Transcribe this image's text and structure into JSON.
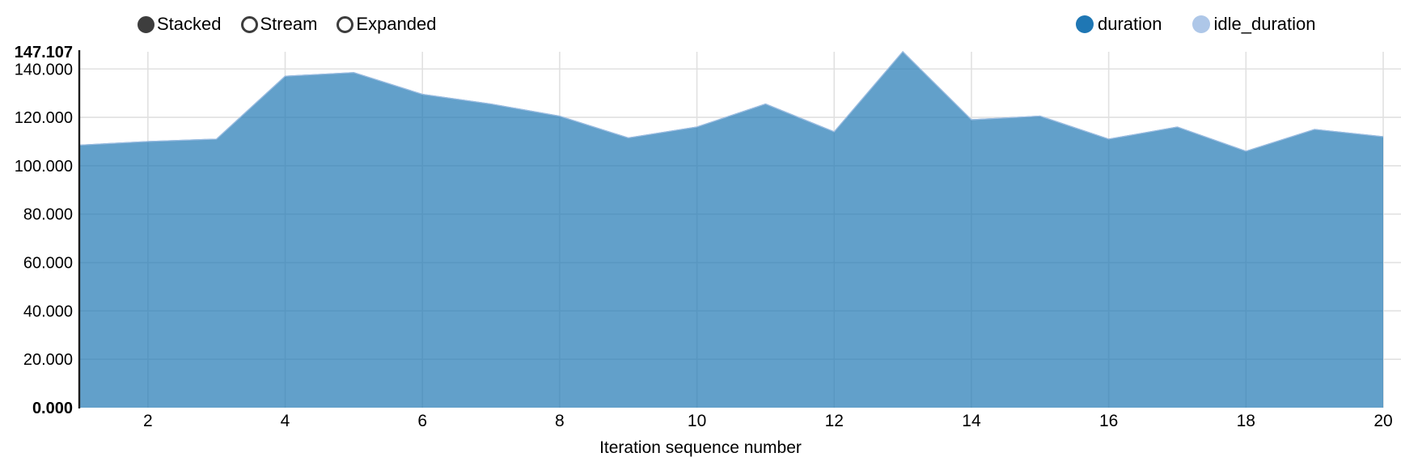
{
  "controls": {
    "options": [
      {
        "label": "Stacked",
        "selected": true
      },
      {
        "label": "Stream",
        "selected": false
      },
      {
        "label": "Expanded",
        "selected": false
      }
    ]
  },
  "legend": {
    "items": [
      {
        "label": "duration",
        "color": "#1f77b4"
      },
      {
        "label": "idle_duration",
        "color": "#aec7e8"
      }
    ]
  },
  "chart_data": {
    "type": "area",
    "mode": "Stacked",
    "title": "",
    "xlabel": "Iteration sequence number",
    "ylabel": "",
    "x": [
      1,
      2,
      3,
      4,
      5,
      6,
      7,
      8,
      9,
      10,
      11,
      12,
      13,
      14,
      15,
      16,
      17,
      18,
      19,
      20
    ],
    "series": [
      {
        "name": "duration",
        "color": "#1f77b4",
        "values": [
          108.5,
          110,
          111,
          137,
          138.5,
          129.5,
          125.5,
          120.5,
          111.5,
          116,
          125.5,
          114,
          147.107,
          119,
          120.5,
          111,
          116,
          106,
          115,
          112
        ]
      },
      {
        "name": "idle_duration",
        "color": "#aec7e8",
        "values": [
          0,
          0,
          0,
          0,
          0,
          0,
          0,
          0,
          0,
          0,
          0,
          0,
          0,
          0,
          0,
          0,
          0,
          0,
          0,
          0
        ]
      }
    ],
    "xlim": [
      1,
      20
    ],
    "ylim": [
      0,
      147.107
    ],
    "x_ticks": [
      2,
      4,
      6,
      8,
      10,
      12,
      14,
      16,
      18,
      20
    ],
    "y_ticks": [
      {
        "label": "0.000",
        "value": 0,
        "bold": true
      },
      {
        "label": "20.000",
        "value": 20,
        "bold": false
      },
      {
        "label": "40.000",
        "value": 40,
        "bold": false
      },
      {
        "label": "60.000",
        "value": 60,
        "bold": false
      },
      {
        "label": "80.000",
        "value": 80,
        "bold": false
      },
      {
        "label": "100.000",
        "value": 100,
        "bold": false
      },
      {
        "label": "120.000",
        "value": 120,
        "bold": false
      },
      {
        "label": "140.000",
        "value": 140,
        "bold": false
      },
      {
        "label": "147.107",
        "value": 147.107,
        "bold": true
      }
    ],
    "grid": true,
    "legend_position": "top-right"
  }
}
